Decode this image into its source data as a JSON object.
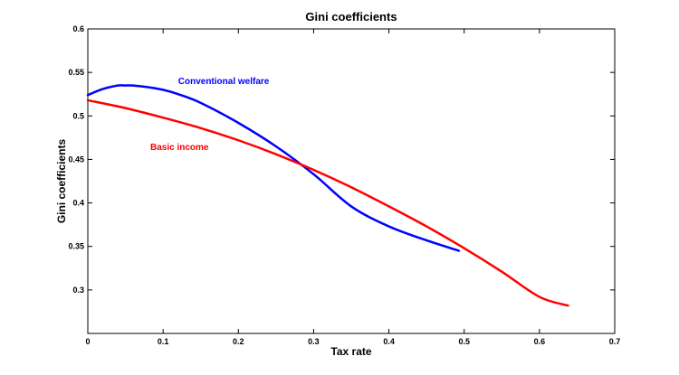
{
  "chart_data": {
    "type": "line",
    "title": "Gini coefficients",
    "xlabel": "Tax rate",
    "ylabel": "Gini coefficients",
    "xlim": [
      0,
      0.7
    ],
    "ylim": [
      0.25,
      0.6
    ],
    "xticks": [
      0,
      0.1,
      0.2,
      0.3,
      0.4,
      0.5,
      0.6,
      0.7
    ],
    "xtick_labels": [
      "0",
      "0.1",
      "0.2",
      "0.3",
      "0.4",
      "0.5",
      "0.6",
      "0.7"
    ],
    "yticks": [
      0.3,
      0.35,
      0.4,
      0.45,
      0.5,
      0.55,
      0.6
    ],
    "ytick_labels": [
      "0.3",
      "0.35",
      "0.4",
      "0.45",
      "0.5",
      "0.55",
      "0.6"
    ],
    "grid": false,
    "series": [
      {
        "name": "Conventional welfare",
        "color": "#0000ff",
        "label_at": [
          0.12,
          0.54
        ],
        "x": [
          0,
          0.02,
          0.04,
          0.05,
          0.06,
          0.08,
          0.1,
          0.12,
          0.15,
          0.2,
          0.25,
          0.3,
          0.35,
          0.4,
          0.45,
          0.493
        ],
        "y": [
          0.524,
          0.531,
          0.535,
          0.535,
          0.535,
          0.533,
          0.53,
          0.525,
          0.515,
          0.492,
          0.465,
          0.433,
          0.396,
          0.373,
          0.357,
          0.345
        ]
      },
      {
        "name": "Basic income",
        "color": "#ff0000",
        "label_at": [
          0.083,
          0.464
        ],
        "x": [
          0,
          0.05,
          0.1,
          0.15,
          0.2,
          0.25,
          0.3,
          0.35,
          0.4,
          0.45,
          0.5,
          0.55,
          0.6,
          0.638
        ],
        "y": [
          0.518,
          0.509,
          0.498,
          0.486,
          0.472,
          0.456,
          0.438,
          0.418,
          0.396,
          0.373,
          0.348,
          0.321,
          0.292,
          0.282
        ]
      }
    ]
  }
}
